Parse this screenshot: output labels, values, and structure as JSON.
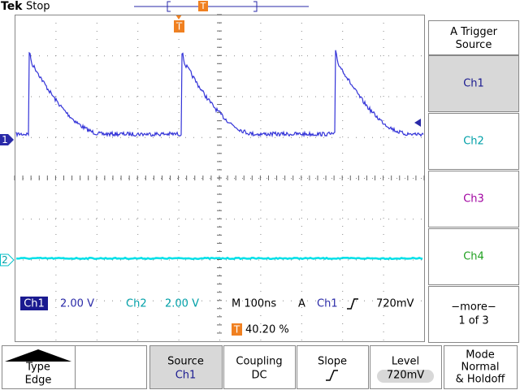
{
  "header": {
    "brand": "Tek",
    "status": "Stop",
    "trigger_marker": "T"
  },
  "channel_markers": [
    "1",
    "2"
  ],
  "side_menu": {
    "title": "A Trigger Source",
    "options": [
      "Ch1",
      "Ch2",
      "Ch3",
      "Ch4"
    ],
    "more": "−more−",
    "page": "1 of 3"
  },
  "readout": {
    "ch1_label": "Ch1",
    "ch1_scale": "2.00 V",
    "ch2_label": "Ch2",
    "ch2_scale": "2.00 V",
    "timebase": "M 100ns",
    "trigger_label": "A",
    "trigger_source": "Ch1",
    "trigger_level": "720mV",
    "trigger_position": "40.20 %"
  },
  "bottom_menu": [
    {
      "label": "Type",
      "value": "Edge"
    },
    {
      "label": "Source",
      "value": "Ch1"
    },
    {
      "label": "Coupling",
      "value": "DC"
    },
    {
      "label": "Slope"
    },
    {
      "label": "Level",
      "value": "720mV"
    },
    {
      "label": "Mode",
      "value": "Normal",
      "value2": "& Holdoff"
    }
  ]
}
